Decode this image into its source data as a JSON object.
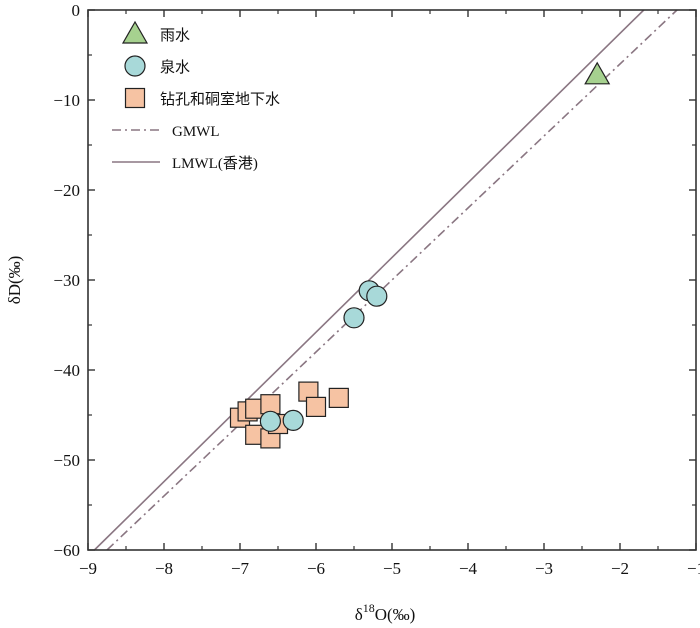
{
  "chart_data": {
    "type": "scatter",
    "xlabel": {
      "prefix": "δ",
      "sup": "18",
      "suffix": "O(‰)"
    },
    "ylabel": "δD(‰)",
    "xlim": [
      -9,
      -1
    ],
    "ylim": [
      -60,
      0
    ],
    "x_ticks": [
      -9,
      -8,
      -7,
      -6,
      -5,
      -4,
      -3,
      -2,
      -1
    ],
    "y_ticks": [
      0,
      -10,
      -20,
      -30,
      -40,
      -50,
      -60
    ],
    "x_tick_labels": [
      "−9",
      "−8",
      "−7",
      "−6",
      "−5",
      "−4",
      "−3",
      "−2",
      "−1"
    ],
    "y_tick_labels": [
      "0",
      "−10",
      "−20",
      "−30",
      "−40",
      "−50",
      "−60"
    ],
    "legend_position": "top-left",
    "series": [
      {
        "name": "雨水",
        "marker": "triangle",
        "color": "#a6d18f",
        "points": [
          [
            -2.3,
            -7.2
          ]
        ]
      },
      {
        "name": "泉水",
        "marker": "circle",
        "color": "#a8d9d9",
        "points": [
          [
            -5.3,
            -31.2
          ],
          [
            -5.2,
            -31.8
          ],
          [
            -5.5,
            -34.2
          ],
          [
            -6.6,
            -45.7
          ],
          [
            -6.3,
            -45.6
          ]
        ]
      },
      {
        "name": "钻孔和硐室地下水",
        "marker": "square",
        "color": "#f6c3a3",
        "points": [
          [
            -7.0,
            -45.3
          ],
          [
            -6.9,
            -44.6
          ],
          [
            -6.8,
            -44.3
          ],
          [
            -6.6,
            -43.8
          ],
          [
            -6.8,
            -47.2
          ],
          [
            -6.6,
            -47.6
          ],
          [
            -6.5,
            -46.0
          ],
          [
            -6.1,
            -42.4
          ],
          [
            -6.0,
            -44.1
          ],
          [
            -5.7,
            -43.1
          ]
        ]
      }
    ],
    "lines": [
      {
        "name": "GMWL",
        "style": "dash-dot",
        "color": "#8a7682",
        "slope": 8,
        "intercept": 10
      },
      {
        "name": "LMWL(香港)",
        "style": "solid",
        "color": "#8a7682",
        "slope": 8.3,
        "intercept": 14
      }
    ]
  }
}
